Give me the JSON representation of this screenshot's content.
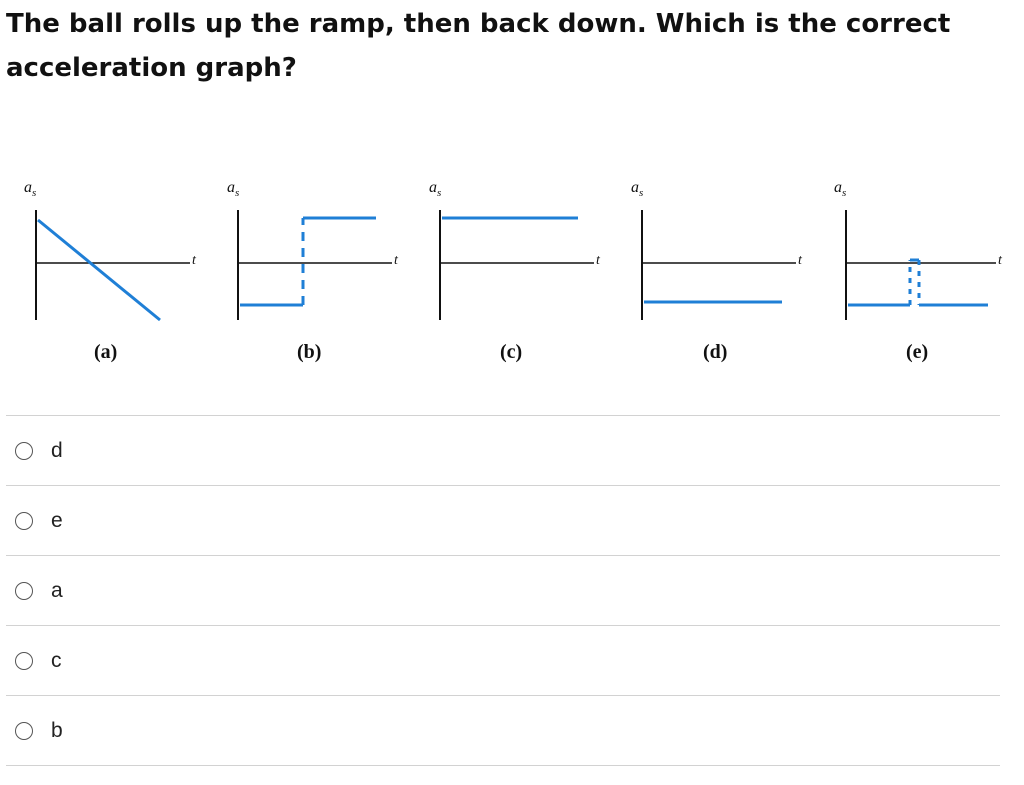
{
  "question": {
    "text": "The ball rolls up the ramp, then back down. Which is the correct acceleration graph?"
  },
  "figure": {
    "y_axis_label": "a",
    "y_axis_subscript": "s",
    "x_axis_label": "t",
    "line_color": "#1f7fd6",
    "graphs": [
      {
        "caption": "(a)"
      },
      {
        "caption": "(b)"
      },
      {
        "caption": "(c)"
      },
      {
        "caption": "(d)"
      },
      {
        "caption": "(e)"
      }
    ]
  },
  "answers": [
    {
      "label": "d"
    },
    {
      "label": "e"
    },
    {
      "label": "a"
    },
    {
      "label": "c"
    },
    {
      "label": "b"
    }
  ]
}
